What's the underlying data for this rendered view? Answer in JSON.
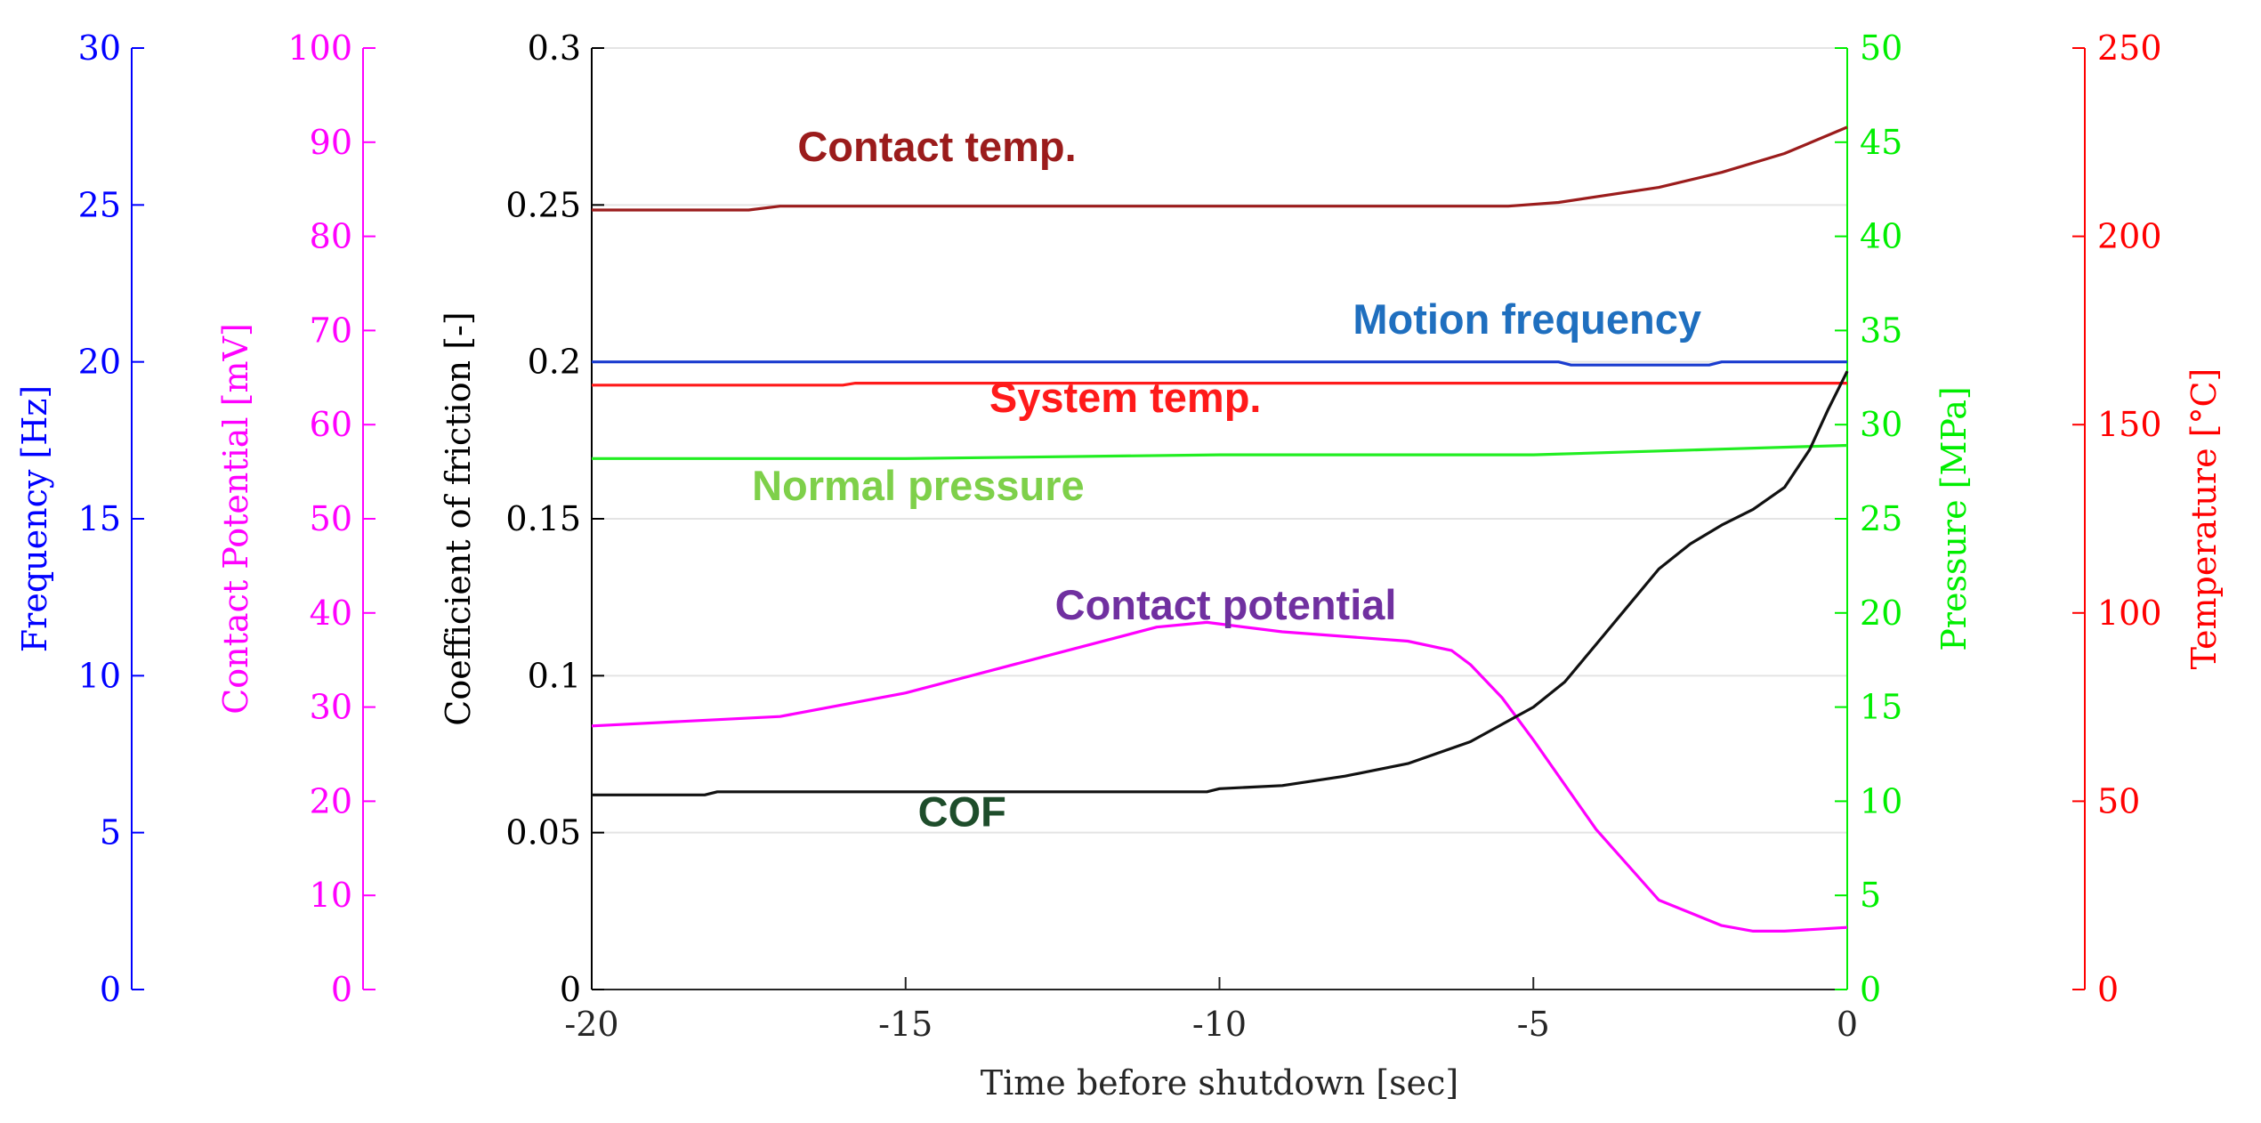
{
  "chart_data": {
    "type": "line",
    "x": [
      -20,
      -18.2,
      -18,
      -15,
      -12,
      -10.2,
      -9,
      -7,
      -6,
      -5,
      -4,
      -3.4,
      -3,
      -2.2,
      -1.8,
      -1,
      -0.5,
      0
    ],
    "xlim": [
      -20,
      0
    ],
    "xticks": [
      -20,
      -15,
      -10,
      -5,
      0
    ],
    "xlabel": "Time before shutdown [sec]",
    "axes": [
      {
        "id": "frequency",
        "label": "Frequency [Hz]",
        "color": "#0000ff",
        "ylim": [
          0,
          30
        ],
        "ticks": [
          0,
          5,
          10,
          15,
          20,
          25,
          30
        ]
      },
      {
        "id": "potential",
        "label": "Contact Potential [mV]",
        "color": "#ff00ff",
        "ylim": [
          0,
          100
        ],
        "ticks": [
          0,
          10,
          20,
          30,
          40,
          50,
          60,
          70,
          80,
          90,
          100
        ]
      },
      {
        "id": "cof",
        "label": "Coefficient of friction [-]",
        "color": "#000000",
        "ylim": [
          0,
          0.3
        ],
        "ticks": [
          0,
          0.05,
          0.1,
          0.15,
          0.2,
          0.25,
          0.3
        ]
      },
      {
        "id": "pressure",
        "label": "Pressure [MPa]",
        "color": "#00ee00",
        "ylim": [
          0,
          50
        ],
        "ticks": [
          0,
          5,
          10,
          15,
          20,
          25,
          30,
          35,
          40,
          45,
          50
        ]
      },
      {
        "id": "temperature",
        "label": "Temperature [°C]",
        "color": "#ff0000",
        "ylim": [
          0,
          250
        ],
        "ticks": [
          0,
          50,
          100,
          150,
          200,
          250
        ]
      }
    ],
    "series": [
      {
        "name": "Contact temp.",
        "axis": "temperature",
        "color": "#9b1c1c",
        "x": [
          -20,
          -17.5,
          -17,
          -15,
          -10,
          -5.4,
          -4.6,
          -3,
          -2,
          -1,
          0
        ],
        "values": [
          207,
          207,
          208,
          208,
          208,
          208,
          209,
          213,
          217,
          222,
          229
        ]
      },
      {
        "name": "Motion frequency",
        "axis": "frequency",
        "color": "#1a3ccf",
        "x": [
          -20,
          -4.6,
          -4.4,
          -2.2,
          -2,
          0
        ],
        "values": [
          20,
          20,
          19.9,
          19.9,
          20,
          20
        ]
      },
      {
        "name": "System temp.",
        "axis": "temperature",
        "color": "#ff1a1a",
        "x": [
          -20,
          -16,
          -15.8,
          0
        ],
        "values": [
          160.5,
          160.5,
          161,
          161
        ]
      },
      {
        "name": "Normal pressure",
        "axis": "pressure",
        "color": "#22ee22",
        "x": [
          -20,
          -15,
          -10,
          -5,
          -2,
          0
        ],
        "values": [
          28.2,
          28.2,
          28.4,
          28.4,
          28.7,
          28.9
        ]
      },
      {
        "name": "Contact potential",
        "axis": "potential",
        "color": "#ff00ff",
        "x": [
          -20,
          -17,
          -15,
          -13,
          -11,
          -10.2,
          -9,
          -7,
          -6.3,
          -6,
          -5.5,
          -5,
          -4,
          -3,
          -2,
          -1.5,
          -1,
          -0.5,
          0
        ],
        "values": [
          28,
          29,
          31.5,
          35,
          38.5,
          39,
          38,
          37,
          36,
          34.5,
          31,
          26.5,
          17,
          9.5,
          6.8,
          6.2,
          6.2,
          6.4,
          6.6
        ]
      },
      {
        "name": "COF",
        "axis": "cof",
        "color": "#111111",
        "x": [
          -20,
          -18.2,
          -18,
          -10.2,
          -10,
          -9,
          -8,
          -7,
          -6,
          -5,
          -4.5,
          -4,
          -3.5,
          -3,
          -2.5,
          -2,
          -1.5,
          -1,
          -0.6,
          -0.3,
          0
        ],
        "values": [
          0.062,
          0.062,
          0.063,
          0.063,
          0.064,
          0.065,
          0.068,
          0.072,
          0.079,
          0.09,
          0.098,
          0.11,
          0.122,
          0.134,
          0.142,
          0.148,
          0.153,
          0.16,
          0.172,
          0.185,
          0.197
        ]
      }
    ],
    "annotations": [
      {
        "text": "Contact temp.",
        "color": "#9b1c1c",
        "x": -14.5,
        "y": 0.264
      },
      {
        "text": "Motion frequency",
        "color": "#1f6fbf",
        "x": -5.1,
        "y": 0.209
      },
      {
        "text": "System temp.",
        "color": "#ff1a1a",
        "x": -11.5,
        "y": 0.184
      },
      {
        "text": "Normal pressure",
        "color": "#7ed04a",
        "x": -14.8,
        "y": 0.156
      },
      {
        "text": "Contact potential",
        "color": "#7030a0",
        "x": -9.9,
        "y": 0.118
      },
      {
        "text": "COF",
        "color": "#1e4d2b",
        "x": -14.1,
        "y": 0.052
      }
    ]
  }
}
